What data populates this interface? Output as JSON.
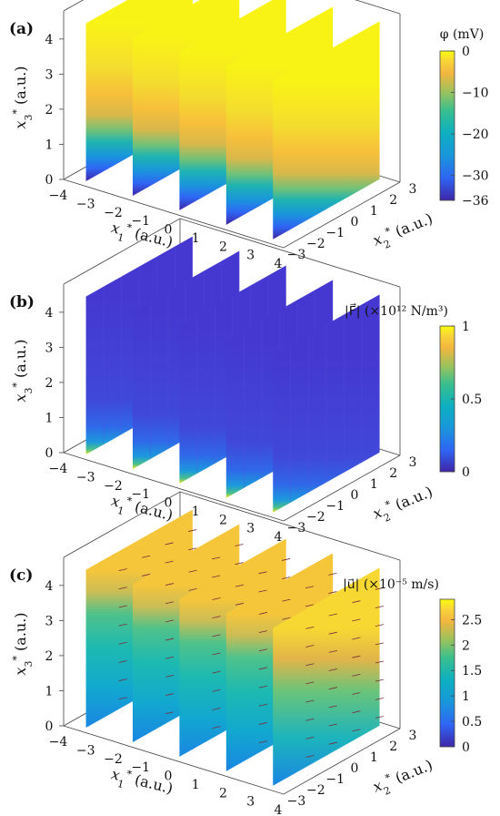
{
  "panels": [
    {
      "label": "(a)",
      "x1_label": "x",
      "x1_sub": "1",
      "x1_sup": "*",
      "x1_unit": " (a.u.)",
      "x2_label": "x",
      "x2_sub": "2",
      "x2_sup": "*",
      "x2_unit": " (a.u.)",
      "x3_label": "x",
      "x3_sub": "3",
      "x3_sup": "*",
      "x3_unit": " (a.u.)",
      "colorbar_title": "φ (mV)",
      "colorbar_ticks": [
        "0",
        "−10",
        "−20",
        "−30",
        "−36"
      ],
      "x1_ticks": [
        "−4",
        "−3",
        "−2",
        "−1",
        "0",
        "1",
        "2",
        "3",
        "4"
      ],
      "x2_ticks": [
        "−3",
        "−2",
        "−1",
        "0",
        "1",
        "2",
        "3"
      ],
      "x3_ticks": [
        "0",
        "1",
        "2",
        "3",
        "4"
      ]
    },
    {
      "label": "(b)",
      "x1_label": "x",
      "x1_sub": "1",
      "x1_sup": "*",
      "x1_unit": " (a.u.)",
      "x2_label": "x",
      "x2_sub": "2",
      "x2_sup": "*",
      "x2_unit": " (a.u.)",
      "x3_label": "x",
      "x3_sub": "3",
      "x3_sup": "*",
      "x3_unit": " (a.u.)",
      "colorbar_title": "|F⃗| (×10¹² N/m³)",
      "colorbar_ticks": [
        "1",
        "0.5",
        "0"
      ],
      "x1_ticks": [
        "−4",
        "−3",
        "−2",
        "−1",
        "0",
        "1",
        "2",
        "3",
        "4"
      ],
      "x2_ticks": [
        "−3",
        "−2",
        "−1",
        "0",
        "1",
        "2",
        "3"
      ],
      "x3_ticks": [
        "0",
        "1",
        "2",
        "3",
        "4"
      ]
    },
    {
      "label": "(c)",
      "x1_label": "x",
      "x1_sub": "1",
      "x1_sup": "*",
      "x1_unit": " (a.u.)",
      "x2_label": "x",
      "x2_sub": "2",
      "x2_sup": "*",
      "x2_unit": " (a.u.)",
      "x3_label": "x",
      "x3_sub": "3",
      "x3_sup": "*",
      "x3_unit": " (a.u.)",
      "colorbar_title": "|u⃗| (×10⁻⁵ m/s)",
      "colorbar_ticks": [
        "2.5",
        "2",
        "1.5",
        "1",
        "0.5",
        "0"
      ],
      "x1_ticks": [
        "−4",
        "−3",
        "−2",
        "−1",
        "0",
        "1",
        "2",
        "3",
        "4"
      ],
      "x2_ticks": [
        "−3",
        "−2",
        "−1",
        "0",
        "1",
        "2",
        "3"
      ],
      "x3_ticks": [
        "0",
        "1",
        "2",
        "3",
        "4"
      ]
    }
  ],
  "chart_data": [
    {
      "type": "heatmap",
      "title": "(a)",
      "variable": "φ",
      "unit": "mV",
      "colormap": "parula",
      "colorbar_range": [
        -36,
        0
      ],
      "colorbar_ticks": [
        0,
        -10,
        -20,
        -30,
        -36
      ],
      "x1_range": [
        -4,
        4
      ],
      "x2_range": [
        -3,
        3
      ],
      "x3_range": [
        0,
        4.5
      ],
      "slice_x1_positions": [
        -3.4,
        -1.7,
        0,
        1.7,
        3.4
      ],
      "profile_x3": [
        0,
        0.5,
        1,
        1.5,
        2,
        2.5,
        3,
        3.5,
        4,
        4.5
      ],
      "profile_value": [
        -36,
        -30,
        -22,
        -14,
        -9,
        -6,
        -4,
        -2,
        -1,
        0
      ],
      "xlabel": "x1* (a.u.)",
      "ylabel": "x2* (a.u.)",
      "zlabel": "x3* (a.u.)"
    },
    {
      "type": "heatmap",
      "title": "(b)",
      "variable": "|F|",
      "unit": "×10^12 N/m^3",
      "colormap": "parula",
      "colorbar_range": [
        0,
        1
      ],
      "colorbar_ticks": [
        1,
        0.5,
        0
      ],
      "x1_range": [
        -4,
        4
      ],
      "x2_range": [
        -3,
        3
      ],
      "x3_range": [
        0,
        4.5
      ],
      "slice_x1_positions": [
        -3.4,
        -1.7,
        0,
        1.7,
        3.4
      ],
      "profile_x3": [
        0,
        0.1,
        0.3,
        0.6,
        1,
        2,
        3,
        4.5
      ],
      "profile_value": [
        1,
        0.7,
        0.35,
        0.15,
        0.06,
        0.02,
        0.01,
        0.005
      ],
      "xlabel": "x1* (a.u.)",
      "ylabel": "x2* (a.u.)",
      "zlabel": "x3* (a.u.)"
    },
    {
      "type": "heatmap",
      "title": "(c)",
      "variable": "|u|",
      "unit": "×10^-5 m/s",
      "colormap": "parula",
      "colorbar_range": [
        0,
        2.9
      ],
      "colorbar_ticks": [
        2.5,
        2,
        1.5,
        1,
        0.5,
        0
      ],
      "x1_range": [
        -4,
        4
      ],
      "x2_range": [
        -3,
        3
      ],
      "x3_range": [
        0,
        4.5
      ],
      "slice_x1_positions": [
        -3.4,
        -1.7,
        0,
        1.7,
        3.4
      ],
      "profile_x3": [
        0,
        1,
        2,
        3,
        4,
        4.5
      ],
      "profile_value": [
        0.3,
        0.8,
        1.2,
        1.7,
        2.3,
        2.6
      ],
      "vector_arrows": true,
      "xlabel": "x1* (a.u.)",
      "ylabel": "x2* (a.u.)",
      "zlabel": "x3* (a.u.)"
    }
  ]
}
